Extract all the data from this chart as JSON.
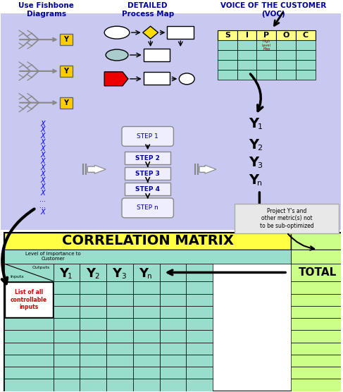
{
  "bg_color": "#ffffff",
  "top_panel_color": "#c8c8f0",
  "matrix_title_color": "#ffff44",
  "matrix_cell_color": "#99ddcc",
  "matrix_total_color": "#ccff88",
  "voc_table_header_color": "#ffff88",
  "voc_table_cell_color": "#99ddcc",
  "fishbone_color": "#999999",
  "step_box_color": "#eeeeff",
  "step_border_color": "#999999",
  "title_fishbone": "Use Fishbone\nDiagrams",
  "title_process": "DETAILED\nProcess Map",
  "title_voc": "VOICE OF THE CUSTOMER\n(VOC)",
  "matrix_title": "CORRELATION MATRIX",
  "total_label": "TOTAL",
  "voc_headers": [
    "S",
    "I",
    "P",
    "O",
    "C"
  ],
  "inputs_label": "Inputs",
  "outputs_label": "Outputs",
  "level_label": "Level of Importance to\nCustomer",
  "list_label": "List of all\ncontrollable\ninputs",
  "proj_ys_label": "Project Y's and\nother metric(s) not\nto be sub-optimized",
  "x_labels": [
    "X",
    "X",
    "X",
    "X",
    "X",
    "X",
    "X",
    "X",
    "X",
    "X",
    "X",
    "X",
    "...",
    "...",
    "X"
  ]
}
